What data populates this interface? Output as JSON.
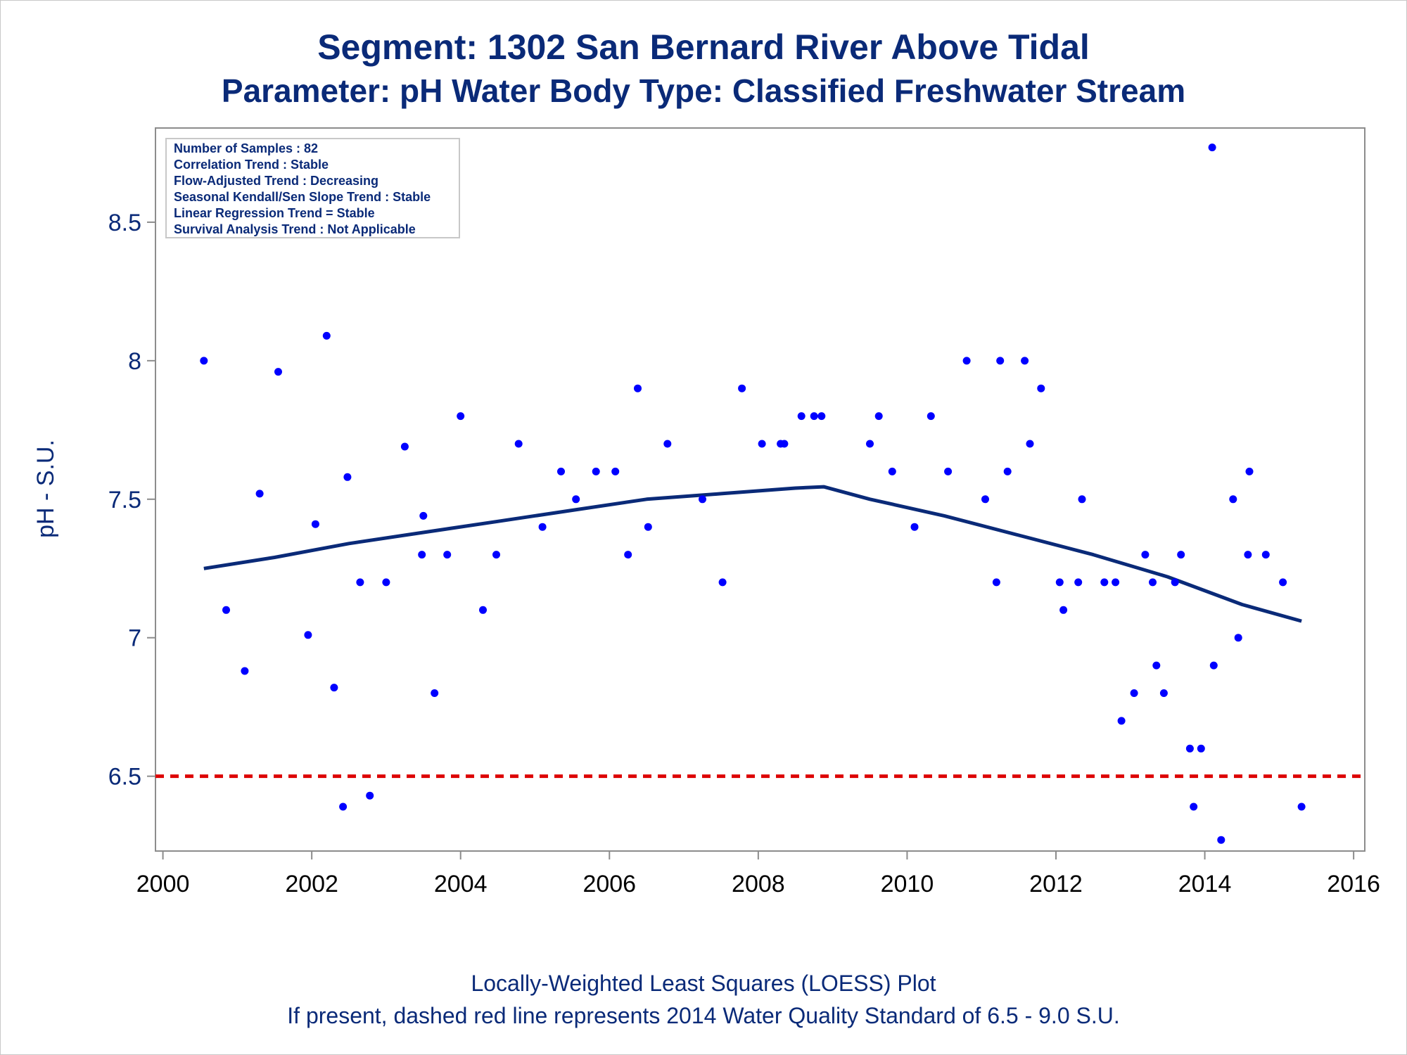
{
  "chart_data": {
    "type": "scatter",
    "title": "Segment: 1302  San Bernard River Above Tidal",
    "subtitle": "Parameter: pH   Water Body Type: Classified Freshwater Stream",
    "ylabel": "pH - S.U.",
    "xlabel": "",
    "xlim": [
      1999.9,
      2016.15
    ],
    "ylim": [
      6.23,
      8.84
    ],
    "x_ticks": [
      2000,
      2002,
      2004,
      2006,
      2008,
      2010,
      2012,
      2014,
      2016
    ],
    "y_ticks": [
      6.5,
      7,
      7.5,
      8,
      8.5
    ],
    "y_tick_labels": [
      "6.5",
      "7",
      "7.5",
      "8",
      "8.5"
    ],
    "grid": false,
    "info_box": [
      "Number of Samples : 82",
      "Correlation Trend : Stable",
      "Flow-Adjusted Trend : Decreasing",
      "Seasonal Kendall/Sen Slope Trend : Stable",
      "Linear Regression Trend = Stable",
      "Survival Analysis Trend : Not Applicable"
    ],
    "series": [
      {
        "kind": "points",
        "color": "#0000ff",
        "points": [
          [
            2000.55,
            8.0
          ],
          [
            2000.85,
            7.1
          ],
          [
            2001.1,
            6.88
          ],
          [
            2001.3,
            7.52
          ],
          [
            2001.55,
            7.96
          ],
          [
            2001.95,
            7.01
          ],
          [
            2002.05,
            7.41
          ],
          [
            2002.2,
            8.09
          ],
          [
            2002.3,
            6.82
          ],
          [
            2002.42,
            6.39
          ],
          [
            2002.48,
            7.58
          ],
          [
            2002.65,
            7.2
          ],
          [
            2002.78,
            6.43
          ],
          [
            2003.0,
            7.2
          ],
          [
            2003.25,
            7.69
          ],
          [
            2003.48,
            7.3
          ],
          [
            2003.5,
            7.44
          ],
          [
            2003.65,
            6.8
          ],
          [
            2003.82,
            7.3
          ],
          [
            2004.0,
            7.8
          ],
          [
            2004.3,
            7.1
          ],
          [
            2004.48,
            7.3
          ],
          [
            2004.78,
            7.7
          ],
          [
            2005.1,
            7.4
          ],
          [
            2005.35,
            7.6
          ],
          [
            2005.55,
            7.5
          ],
          [
            2005.82,
            7.6
          ],
          [
            2006.08,
            7.6
          ],
          [
            2006.25,
            7.3
          ],
          [
            2006.38,
            7.9
          ],
          [
            2006.52,
            7.4
          ],
          [
            2006.78,
            7.7
          ],
          [
            2007.25,
            7.5
          ],
          [
            2007.52,
            7.2
          ],
          [
            2007.78,
            7.9
          ],
          [
            2008.05,
            7.7
          ],
          [
            2008.3,
            7.7
          ],
          [
            2008.35,
            7.7
          ],
          [
            2008.58,
            7.8
          ],
          [
            2008.75,
            7.8
          ],
          [
            2008.85,
            7.8
          ],
          [
            2009.5,
            7.7
          ],
          [
            2009.62,
            7.8
          ],
          [
            2009.8,
            7.6
          ],
          [
            2010.1,
            7.4
          ],
          [
            2010.32,
            7.8
          ],
          [
            2010.55,
            7.6
          ],
          [
            2010.8,
            8.0
          ],
          [
            2011.05,
            7.5
          ],
          [
            2011.2,
            7.2
          ],
          [
            2011.25,
            8.0
          ],
          [
            2011.35,
            7.6
          ],
          [
            2011.58,
            8.0
          ],
          [
            2011.65,
            7.7
          ],
          [
            2011.8,
            7.9
          ],
          [
            2012.05,
            7.2
          ],
          [
            2012.1,
            7.1
          ],
          [
            2012.3,
            7.2
          ],
          [
            2012.35,
            7.5
          ],
          [
            2012.65,
            7.2
          ],
          [
            2012.8,
            7.2
          ],
          [
            2012.88,
            6.7
          ],
          [
            2013.05,
            6.8
          ],
          [
            2013.2,
            7.3
          ],
          [
            2013.3,
            7.2
          ],
          [
            2013.35,
            6.9
          ],
          [
            2013.45,
            6.8
          ],
          [
            2013.6,
            7.2
          ],
          [
            2013.68,
            7.3
          ],
          [
            2013.8,
            6.6
          ],
          [
            2013.85,
            6.39
          ],
          [
            2013.95,
            6.6
          ],
          [
            2014.1,
            8.77
          ],
          [
            2014.12,
            6.9
          ],
          [
            2014.22,
            6.27
          ],
          [
            2014.38,
            7.5
          ],
          [
            2014.45,
            7.0
          ],
          [
            2014.58,
            7.3
          ],
          [
            2014.6,
            7.6
          ],
          [
            2014.82,
            7.3
          ],
          [
            2015.05,
            7.2
          ],
          [
            2015.3,
            6.39
          ]
        ]
      },
      {
        "kind": "loess",
        "color": "#0a2a78",
        "points": [
          [
            2000.55,
            7.25
          ],
          [
            2001.5,
            7.29
          ],
          [
            2002.5,
            7.34
          ],
          [
            2003.5,
            7.38
          ],
          [
            2004.5,
            7.42
          ],
          [
            2005.5,
            7.46
          ],
          [
            2006.5,
            7.5
          ],
          [
            2007.5,
            7.52
          ],
          [
            2008.5,
            7.54
          ],
          [
            2008.88,
            7.545
          ],
          [
            2009.5,
            7.5
          ],
          [
            2010.5,
            7.44
          ],
          [
            2011.5,
            7.37
          ],
          [
            2012.5,
            7.3
          ],
          [
            2013.5,
            7.22
          ],
          [
            2014.5,
            7.12
          ],
          [
            2015.3,
            7.06
          ]
        ]
      },
      {
        "kind": "standard",
        "color": "#dd0000",
        "y": 6.5
      }
    ]
  },
  "footer": {
    "line1": "Locally-Weighted Least Squares (LOESS) Plot",
    "line2": "If present, dashed red line represents 2014 Water Quality Standard of 6.5 - 9.0 S.U."
  }
}
